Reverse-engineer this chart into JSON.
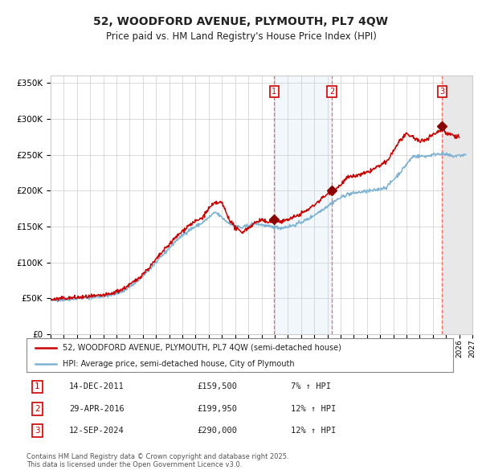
{
  "title": "52, WOODFORD AVENUE, PLYMOUTH, PL7 4QW",
  "subtitle": "Price paid vs. HM Land Registry's House Price Index (HPI)",
  "bg_color": "#ffffff",
  "plot_bg_color": "#ffffff",
  "grid_color": "#cccccc",
  "hpi_line_color": "#7fb3d3",
  "price_line_color": "#cc0000",
  "sale_marker_color": "#8b0000",
  "sale1_date": 2011.95,
  "sale1_price": 159500,
  "sale2_date": 2016.33,
  "sale2_price": 199950,
  "sale3_date": 2024.7,
  "sale3_price": 290000,
  "sale1_info": "14-DEC-2011",
  "sale1_price_str": "£159,500",
  "sale1_hpi": "7% ↑ HPI",
  "sale2_info": "29-APR-2016",
  "sale2_price_str": "£199,950",
  "sale2_hpi": "12% ↑ HPI",
  "sale3_info": "12-SEP-2024",
  "sale3_price_str": "£290,000",
  "sale3_hpi": "12% ↑ HPI",
  "legend1": "52, WOODFORD AVENUE, PLYMOUTH, PL7 4QW (semi-detached house)",
  "legend2": "HPI: Average price, semi-detached house, City of Plymouth",
  "footnote": "Contains HM Land Registry data © Crown copyright and database right 2025.\nThis data is licensed under the Open Government Licence v3.0.",
  "xmin": 1995,
  "xmax": 2027,
  "ymin": 0,
  "ymax": 360000,
  "hpi_anchors_x": [
    1995.0,
    1996.0,
    1997.0,
    1998.5,
    1999.5,
    2000.5,
    2001.5,
    2002.5,
    2003.5,
    2004.5,
    2005.5,
    2006.5,
    2007.5,
    2008.5,
    2009.5,
    2010.5,
    2011.5,
    2012.5,
    2013.5,
    2014.5,
    2015.5,
    2016.5,
    2017.5,
    2018.5,
    2019.5,
    2020.5,
    2021.5,
    2022.5,
    2023.5,
    2024.5,
    2025.5,
    2026.5
  ],
  "hpi_anchors_y": [
    47000,
    48000,
    50000,
    52000,
    54000,
    60000,
    72000,
    90000,
    110000,
    130000,
    145000,
    155000,
    170000,
    155000,
    148000,
    155000,
    150000,
    148000,
    152000,
    160000,
    172000,
    185000,
    195000,
    198000,
    200000,
    205000,
    225000,
    248000,
    248000,
    252000,
    248000,
    250000
  ],
  "price_anchors_x": [
    1995.0,
    1996.0,
    1997.0,
    1998.5,
    1999.5,
    2000.5,
    2001.5,
    2002.5,
    2003.5,
    2004.5,
    2005.5,
    2006.5,
    2007.0,
    2007.5,
    2008.0,
    2008.5,
    2009.0,
    2009.5,
    2010.0,
    2010.5,
    2011.0,
    2011.5,
    2011.95,
    2012.5,
    2013.0,
    2013.5,
    2014.0,
    2014.5,
    2015.0,
    2015.5,
    2016.0,
    2016.33,
    2016.5,
    2017.0,
    2017.5,
    2018.0,
    2018.5,
    2019.0,
    2019.5,
    2020.0,
    2020.5,
    2021.0,
    2021.5,
    2022.0,
    2022.5,
    2023.0,
    2023.5,
    2024.0,
    2024.5,
    2024.7,
    2025.0,
    2025.5,
    2026.0
  ],
  "price_anchors_y": [
    48000,
    50000,
    51000,
    53000,
    55500,
    63000,
    75000,
    93000,
    115000,
    135000,
    152000,
    162000,
    175000,
    183000,
    183000,
    162000,
    148000,
    142000,
    148000,
    155000,
    160000,
    155000,
    159500,
    157000,
    160000,
    163000,
    168000,
    173000,
    180000,
    188000,
    195000,
    199950,
    200000,
    208000,
    218000,
    220000,
    222000,
    225000,
    230000,
    235000,
    240000,
    255000,
    270000,
    278000,
    275000,
    268000,
    272000,
    278000,
    283000,
    290000,
    280000,
    278000,
    275000
  ]
}
